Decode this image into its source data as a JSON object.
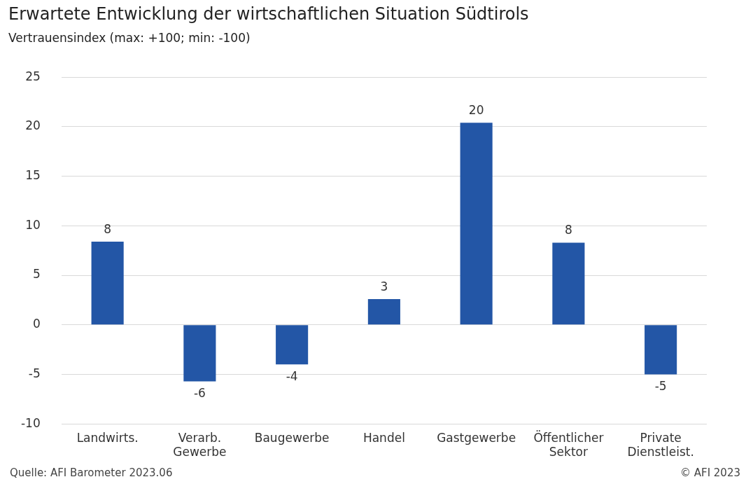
{
  "chart_data": {
    "type": "bar",
    "title": "Erwartete Entwicklung der wirtschaftlichen Situation Südtirols",
    "subtitle": "Vertrauensindex (max: +100; min: -100)",
    "categories": [
      "Landwirts.",
      "Verarb. Gewerbe",
      "Baugewerbe",
      "Handel",
      "Gastgewerbe",
      "Öffentlicher Sektor",
      "Private Dienstleist."
    ],
    "values": [
      8.4,
      -5.7,
      -4.0,
      2.6,
      20.4,
      8.3,
      -5.0
    ],
    "value_labels": [
      "8",
      "-6",
      "-4",
      "3",
      "20",
      "8",
      "-5"
    ],
    "color": "#2356a6",
    "ylim": [
      -10,
      25
    ],
    "yticks": [
      -10,
      -5,
      0,
      5,
      10,
      15,
      20,
      25
    ],
    "grid": "y",
    "legend": false,
    "annotations": [
      "Quelle: AFI Barometer 2023.06",
      "© AFI 2023"
    ]
  }
}
